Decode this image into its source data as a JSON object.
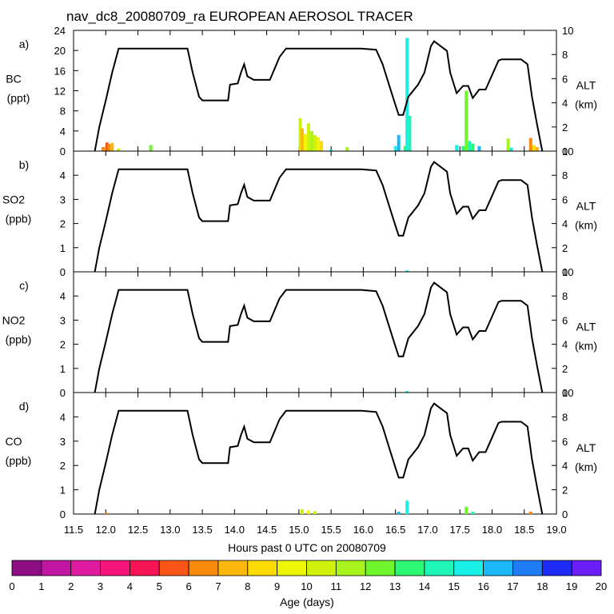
{
  "chart_data": {
    "type": "line",
    "title": "nav_dc8_20080709_ra EUROPEAN AEROSOL TRACER",
    "xlabel": "Hours past 0 UTC on 20080709",
    "xlim": [
      11.5,
      19.0
    ],
    "x_ticks": [
      "11.5",
      "12.0",
      "12.5",
      "13.0",
      "13.5",
      "14.0",
      "14.5",
      "15.0",
      "15.5",
      "16.0",
      "16.5",
      "17.0",
      "17.5",
      "18.0",
      "18.5",
      "19.0"
    ],
    "altitude_axis": {
      "label": "ALT",
      "unit": "(km)",
      "ylim": [
        0,
        10
      ],
      "ticks": [
        "0",
        "2",
        "4",
        "6",
        "8",
        "10"
      ]
    },
    "altitude_km": [
      [
        11.83,
        0
      ],
      [
        11.9,
        2
      ],
      [
        12.0,
        4.2
      ],
      [
        12.1,
        6.5
      ],
      [
        12.2,
        8.5
      ],
      [
        13.27,
        8.5
      ],
      [
        13.35,
        6.5
      ],
      [
        13.45,
        4.5
      ],
      [
        13.5,
        4.2
      ],
      [
        13.9,
        4.2
      ],
      [
        13.93,
        5.5
      ],
      [
        14.05,
        5.6
      ],
      [
        14.1,
        6.5
      ],
      [
        14.15,
        7.2
      ],
      [
        14.2,
        6.2
      ],
      [
        14.3,
        5.9
      ],
      [
        14.55,
        5.9
      ],
      [
        14.7,
        7.8
      ],
      [
        14.8,
        8.5
      ],
      [
        15.97,
        8.5
      ],
      [
        16.2,
        8.4
      ],
      [
        16.3,
        7.2
      ],
      [
        16.4,
        5.5
      ],
      [
        16.5,
        3.8
      ],
      [
        16.55,
        3.0
      ],
      [
        16.62,
        3.0
      ],
      [
        16.7,
        4.5
      ],
      [
        16.85,
        5.5
      ],
      [
        16.95,
        6.5
      ],
      [
        17.05,
        8.7
      ],
      [
        17.1,
        9.1
      ],
      [
        17.2,
        8.7
      ],
      [
        17.3,
        8.3
      ],
      [
        17.35,
        6.5
      ],
      [
        17.45,
        4.8
      ],
      [
        17.55,
        5.4
      ],
      [
        17.63,
        5.4
      ],
      [
        17.7,
        4.4
      ],
      [
        17.8,
        5.1
      ],
      [
        17.9,
        5.1
      ],
      [
        18.0,
        6.3
      ],
      [
        18.1,
        7.5
      ],
      [
        18.15,
        7.6
      ],
      [
        18.45,
        7.6
      ],
      [
        18.55,
        7.2
      ],
      [
        18.62,
        4.5
      ],
      [
        18.7,
        2.2
      ],
      [
        18.78,
        0
      ]
    ],
    "panels": [
      {
        "label": "a)",
        "species": "BC",
        "unit": "(ppt)",
        "ylim": [
          0,
          24
        ],
        "y_ticks": [
          "0",
          "4",
          "8",
          "12",
          "16",
          "20",
          "24"
        ],
        "series": [
          {
            "x": 11.96,
            "v": 0.8,
            "age": 6
          },
          {
            "x": 12.02,
            "v": 1.7,
            "age": 5
          },
          {
            "x": 12.05,
            "v": 1.4,
            "age": 6
          },
          {
            "x": 12.1,
            "v": 1.6,
            "age": 7
          },
          {
            "x": 12.2,
            "v": 0.5,
            "age": 10
          },
          {
            "x": 12.7,
            "v": 1.2,
            "age": 12
          },
          {
            "x": 15.02,
            "v": 6.5,
            "age": 10
          },
          {
            "x": 15.05,
            "v": 4.5,
            "age": 7
          },
          {
            "x": 15.1,
            "v": 3.4,
            "age": 9
          },
          {
            "x": 15.15,
            "v": 5.5,
            "age": 10
          },
          {
            "x": 15.2,
            "v": 4.0,
            "age": 11
          },
          {
            "x": 15.25,
            "v": 3.2,
            "age": 10
          },
          {
            "x": 15.3,
            "v": 2.8,
            "age": 9
          },
          {
            "x": 15.35,
            "v": 2.0,
            "age": 8
          },
          {
            "x": 15.5,
            "v": 0.3,
            "age": 15
          },
          {
            "x": 15.75,
            "v": 0.8,
            "age": 11
          },
          {
            "x": 16.5,
            "v": 1.0,
            "age": 15
          },
          {
            "x": 16.55,
            "v": 3.2,
            "age": 16
          },
          {
            "x": 16.65,
            "v": 1.0,
            "age": 13
          },
          {
            "x": 16.68,
            "v": 22.5,
            "age": 15
          },
          {
            "x": 16.72,
            "v": 7.0,
            "age": 14
          },
          {
            "x": 17.45,
            "v": 1.2,
            "age": 15
          },
          {
            "x": 17.55,
            "v": 1.0,
            "age": 13
          },
          {
            "x": 17.6,
            "v": 12.0,
            "age": 12
          },
          {
            "x": 17.65,
            "v": 2.0,
            "age": 14
          },
          {
            "x": 17.7,
            "v": 1.5,
            "age": 13
          },
          {
            "x": 17.8,
            "v": 1.0,
            "age": 16
          },
          {
            "x": 18.25,
            "v": 2.5,
            "age": 11
          },
          {
            "x": 18.3,
            "v": 0.7,
            "age": 15
          },
          {
            "x": 18.6,
            "v": 2.6,
            "age": 6
          },
          {
            "x": 18.65,
            "v": 1.2,
            "age": 8
          },
          {
            "x": 18.7,
            "v": 0.8,
            "age": 7
          }
        ]
      },
      {
        "label": "b)",
        "species": "SO2",
        "unit": "(ppb)",
        "ylim": [
          0,
          5
        ],
        "y_ticks": [
          "0",
          "1",
          "2",
          "3",
          "4"
        ],
        "series": [
          {
            "x": 16.68,
            "v": 0.06,
            "age": 15
          },
          {
            "x": 15.05,
            "v": 0.02,
            "age": 10
          }
        ]
      },
      {
        "label": "c)",
        "species": "NO2",
        "unit": "(ppb)",
        "ylim": [
          0,
          5
        ],
        "y_ticks": [
          "0",
          "1",
          "2",
          "3",
          "4"
        ],
        "series": [
          {
            "x": 16.68,
            "v": 0.06,
            "age": 15
          },
          {
            "x": 15.05,
            "v": 0.02,
            "age": 10
          }
        ]
      },
      {
        "label": "d)",
        "species": "CO",
        "unit": "(ppb)",
        "ylim": [
          0,
          5
        ],
        "y_ticks": [
          "0",
          "1",
          "2",
          "3",
          "4"
        ],
        "series": [
          {
            "x": 12.02,
            "v": 0.05,
            "age": 6
          },
          {
            "x": 15.05,
            "v": 0.2,
            "age": 10
          },
          {
            "x": 15.15,
            "v": 0.15,
            "age": 9
          },
          {
            "x": 15.25,
            "v": 0.12,
            "age": 10
          },
          {
            "x": 16.55,
            "v": 0.1,
            "age": 16
          },
          {
            "x": 16.68,
            "v": 0.55,
            "age": 15
          },
          {
            "x": 17.6,
            "v": 0.3,
            "age": 12
          },
          {
            "x": 17.7,
            "v": 0.1,
            "age": 14
          },
          {
            "x": 18.6,
            "v": 0.1,
            "age": 6
          }
        ]
      }
    ],
    "colorbar": {
      "label": "Age (days)",
      "ticks": [
        "0",
        "1",
        "2",
        "3",
        "4",
        "5",
        "6",
        "7",
        "8",
        "9",
        "10",
        "11",
        "12",
        "13",
        "14",
        "15",
        "16",
        "17",
        "18",
        "19",
        "20"
      ],
      "colors": [
        "#8c0d84",
        "#c016a3",
        "#e01aa0",
        "#f5157a",
        "#f71455",
        "#fa5519",
        "#f88b0b",
        "#fbb70c",
        "#fddb05",
        "#eef506",
        "#cff20c",
        "#a8f41c",
        "#6ef52c",
        "#2cf772",
        "#1ef5b6",
        "#19f0e8",
        "#1ab8f7",
        "#1e7cf5",
        "#1e2af5",
        "#6a1ef7"
      ]
    }
  }
}
